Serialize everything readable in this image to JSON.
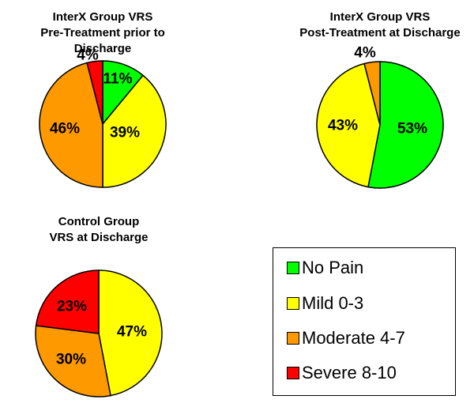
{
  "colors": {
    "no_pain": "#00ff00",
    "mild": "#ffff00",
    "moderate": "#ff9900",
    "severe": "#ff0000"
  },
  "chart_data": [
    {
      "type": "pie",
      "title": [
        "InterX Group VRS",
        "Pre-Treatment prior to Discharge"
      ],
      "categories": [
        "No Pain",
        "Mild 0-3",
        "Moderate 4-7",
        "Severe 8-10"
      ],
      "values": [
        11,
        39,
        46,
        4
      ],
      "labels": [
        "11%",
        "39%",
        "46%",
        "4%"
      ]
    },
    {
      "type": "pie",
      "title": [
        "InterX Group VRS",
        "Post-Treatment at Discharge"
      ],
      "categories": [
        "No Pain",
        "Mild 0-3",
        "Moderate 4-7"
      ],
      "values": [
        53,
        43,
        4
      ],
      "labels": [
        "53%",
        "43%",
        "4%"
      ]
    },
    {
      "type": "pie",
      "title": [
        "Control Group",
        "VRS at Discharge"
      ],
      "categories": [
        "Mild 0-3",
        "Moderate 4-7",
        "Severe 8-10"
      ],
      "values": [
        47,
        30,
        23
      ],
      "labels": [
        "47%",
        "30%",
        "23%"
      ]
    }
  ],
  "legend": {
    "items": [
      {
        "label": "No Pain",
        "key": "no_pain"
      },
      {
        "label": "Mild 0-3",
        "key": "mild"
      },
      {
        "label": "Moderate 4-7",
        "key": "moderate"
      },
      {
        "label": "Severe 8-10",
        "key": "severe"
      }
    ]
  }
}
